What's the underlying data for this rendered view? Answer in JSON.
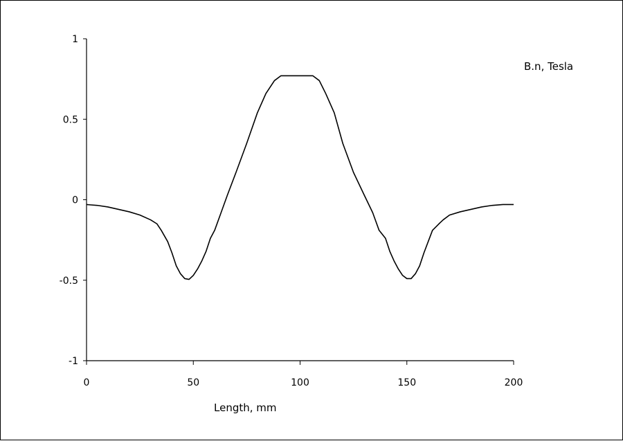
{
  "chart_data": {
    "type": "line",
    "title": "",
    "xlabel": "Length, mm",
    "ylabel": "B.n, Tesla",
    "xlim": [
      0,
      200
    ],
    "ylim": [
      -1,
      1
    ],
    "xticks": [
      0,
      50,
      100,
      150,
      200
    ],
    "xtick_labels": [
      "0",
      "50",
      "100",
      "150",
      "200"
    ],
    "yticks": [
      -1,
      -0.5,
      0,
      0.5,
      1
    ],
    "ytick_labels": [
      "-1",
      "-0.5",
      "0",
      "0.5",
      "1"
    ],
    "grid": false,
    "legend": "none",
    "line_color": "#000000",
    "series": [
      {
        "x": [
          0,
          5,
          10,
          15,
          20,
          25,
          30,
          33,
          35,
          38,
          40,
          42,
          44,
          46,
          48,
          50,
          52,
          54,
          56,
          58,
          60,
          63,
          66,
          70,
          75,
          80,
          84,
          88,
          91,
          94,
          96,
          100,
          104,
          106,
          109,
          112,
          116,
          120,
          125,
          130,
          134,
          137,
          140,
          142,
          144,
          146,
          148,
          150,
          152,
          154,
          156,
          158,
          160,
          162,
          165,
          167,
          170,
          175,
          180,
          185,
          190,
          195,
          200
        ],
        "y": [
          -0.03,
          -0.035,
          -0.045,
          -0.06,
          -0.075,
          -0.095,
          -0.125,
          -0.15,
          -0.19,
          -0.26,
          -0.33,
          -0.41,
          -0.46,
          -0.49,
          -0.495,
          -0.47,
          -0.43,
          -0.38,
          -0.32,
          -0.24,
          -0.19,
          -0.08,
          0.03,
          0.17,
          0.35,
          0.54,
          0.66,
          0.74,
          0.77,
          0.77,
          0.77,
          0.77,
          0.77,
          0.77,
          0.74,
          0.66,
          0.54,
          0.35,
          0.17,
          0.03,
          -0.08,
          -0.19,
          -0.24,
          -0.32,
          -0.38,
          -0.43,
          -0.47,
          -0.49,
          -0.49,
          -0.46,
          -0.41,
          -0.33,
          -0.26,
          -0.19,
          -0.15,
          -0.125,
          -0.095,
          -0.075,
          -0.06,
          -0.045,
          -0.035,
          -0.03,
          -0.03
        ]
      }
    ]
  }
}
